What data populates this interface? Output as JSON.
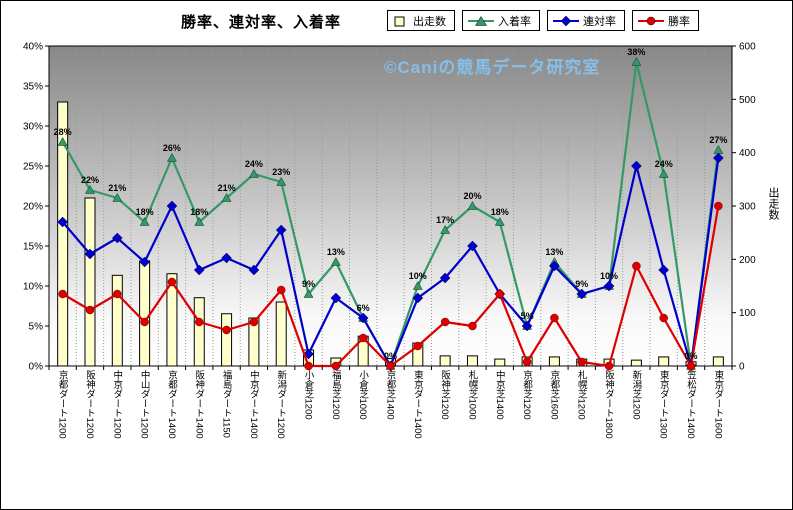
{
  "title": "勝率、連対率、入着率",
  "watermark": "©Caniの競馬データ研究室",
  "axes": {
    "left_ticks": [
      "0%",
      "5%",
      "10%",
      "15%",
      "20%",
      "25%",
      "30%",
      "35%",
      "40%"
    ],
    "right_ticks": [
      "0",
      "100",
      "200",
      "300",
      "400",
      "500",
      "600"
    ],
    "right_title": "出走数"
  },
  "chart_data": {
    "type": "combo",
    "title": "勝率、連対率、入着率",
    "legend_position": "top-right",
    "grid": "vertical-dotted",
    "left_axis": {
      "min": 0,
      "max": 40,
      "unit": "%",
      "tick_step": 5
    },
    "right_axis": {
      "label": "出走数",
      "min": 0,
      "max": 600,
      "tick_step": 100
    },
    "categories": [
      "京都ダート1200",
      "阪神ダート1200",
      "中京ダート1200",
      "中山ダート1200",
      "京都ダート1400",
      "阪神ダート1400",
      "福島ダート1150",
      "中京ダート1400",
      "新潟ダート1200",
      "小倉芝1200",
      "福島芝1200",
      "小倉芝1000",
      "京都芝1400",
      "東京ダート1400",
      "阪神芝1200",
      "札幌芝1000",
      "中京芝1400",
      "京都芝1200",
      "京都芝1600",
      "札幌芝1200",
      "阪神ダート1800",
      "新潟芝1200",
      "東京ダート1300",
      "笠松ダート1400",
      "東京ダート1600"
    ],
    "series": [
      {
        "name": "出走数",
        "type": "bar",
        "axis": "right",
        "color": "#FFFFCC",
        "border_color": "#000000",
        "values": [
          495,
          315,
          170,
          197,
          173,
          128,
          98,
          90,
          120,
          30,
          15,
          56,
          14,
          43,
          19,
          19,
          13,
          17,
          17,
          13,
          13,
          11,
          17,
          8,
          17
        ]
      },
      {
        "name": "入着率",
        "type": "line",
        "marker": "triangle",
        "axis": "left",
        "color": "#339966",
        "values": [
          28,
          22,
          21,
          18,
          26,
          18,
          21,
          24,
          23,
          9,
          13,
          6,
          0,
          10,
          17,
          20,
          18,
          5,
          13,
          9,
          10,
          38,
          24,
          0,
          27
        ],
        "point_labels": [
          "28%",
          "22%",
          "21%",
          "18%",
          "26%",
          "18%",
          "21%",
          "24%",
          "23%",
          "9%",
          "13%",
          "6%",
          "0%",
          "10%",
          "17%",
          "20%",
          "18%",
          "5%",
          "13%",
          "9%",
          "10%",
          "38%",
          "24%",
          "0%",
          "27%"
        ]
      },
      {
        "name": "連対率",
        "type": "line",
        "marker": "diamond",
        "axis": "left",
        "color": "#0000CC",
        "values": [
          18,
          14,
          16,
          13,
          20,
          12,
          13.5,
          12,
          17,
          1.5,
          8.5,
          6,
          0,
          8.5,
          11,
          15,
          9,
          5,
          12.5,
          9,
          10,
          25,
          12,
          0,
          26
        ]
      },
      {
        "name": "勝率",
        "type": "line",
        "marker": "circle",
        "axis": "left",
        "color": "#DD0000",
        "values": [
          9,
          7,
          9,
          5.5,
          10.5,
          5.5,
          4.5,
          5.5,
          9.5,
          0,
          0,
          3.5,
          0,
          2.5,
          5.5,
          5,
          9,
          0.5,
          6,
          0.5,
          0,
          12.5,
          6,
          0,
          20
        ]
      }
    ]
  }
}
